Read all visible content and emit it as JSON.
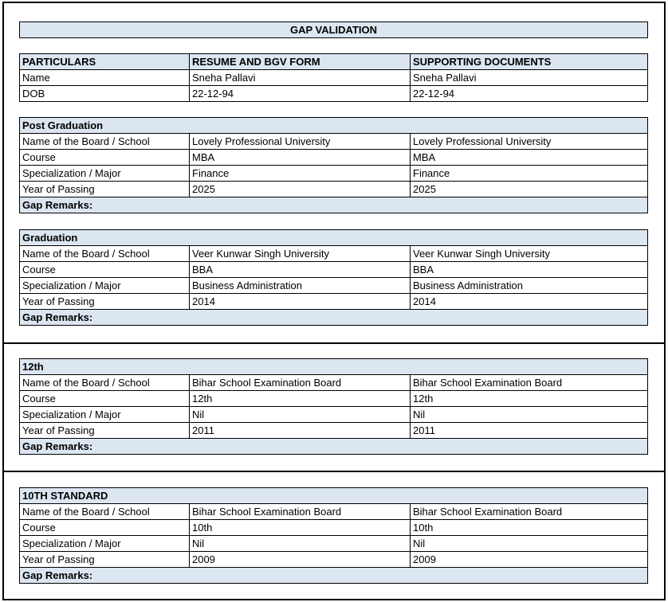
{
  "title": "GAP VALIDATION",
  "header": {
    "columns": [
      "PARTICULARS",
      "RESUME AND BGV FORM",
      "SUPPORTING DOCUMENTS"
    ],
    "rows": [
      [
        "Name",
        "Sneha Pallavi",
        "Sneha Pallavi"
      ],
      [
        "DOB",
        "22-12-94",
        "22-12-94"
      ]
    ]
  },
  "sections": [
    {
      "title": "Post Graduation",
      "rows": [
        [
          "Name of the Board / School",
          "Lovely Professional University",
          "Lovely Professional University"
        ],
        [
          "Course",
          "MBA",
          "MBA"
        ],
        [
          "Specialization / Major",
          "Finance",
          "Finance"
        ],
        [
          "Year of Passing",
          "2025",
          "2025"
        ]
      ],
      "remarks": "Gap Remarks:"
    },
    {
      "title": "Graduation",
      "rows": [
        [
          "Name of the Board / School",
          "Veer Kunwar Singh University",
          "Veer Kunwar Singh University"
        ],
        [
          "Course",
          "BBA",
          "BBA"
        ],
        [
          "Specialization / Major",
          "Business Administration",
          "Business Administration"
        ],
        [
          "Year of Passing",
          "2014",
          "2014"
        ]
      ],
      "remarks": "Gap Remarks:"
    },
    {
      "title": "12th",
      "rows": [
        [
          "Name of the Board / School",
          "Bihar School Examination Board",
          "Bihar School Examination Board"
        ],
        [
          "Course",
          "12th",
          "12th"
        ],
        [
          "Specialization / Major",
          "Nil",
          "Nil"
        ],
        [
          "Year of Passing",
          "2011",
          "2011"
        ]
      ],
      "remarks": "Gap Remarks:"
    },
    {
      "title": "10TH STANDARD",
      "rows": [
        [
          "Name of the Board / School",
          "Bihar School Examination Board",
          "Bihar School Examination Board"
        ],
        [
          "Course",
          "10th",
          "10th"
        ],
        [
          "Specialization / Major",
          "Nil",
          "Nil"
        ],
        [
          "Year of Passing",
          "2009",
          "2009"
        ]
      ],
      "remarks": "Gap Remarks:"
    }
  ]
}
